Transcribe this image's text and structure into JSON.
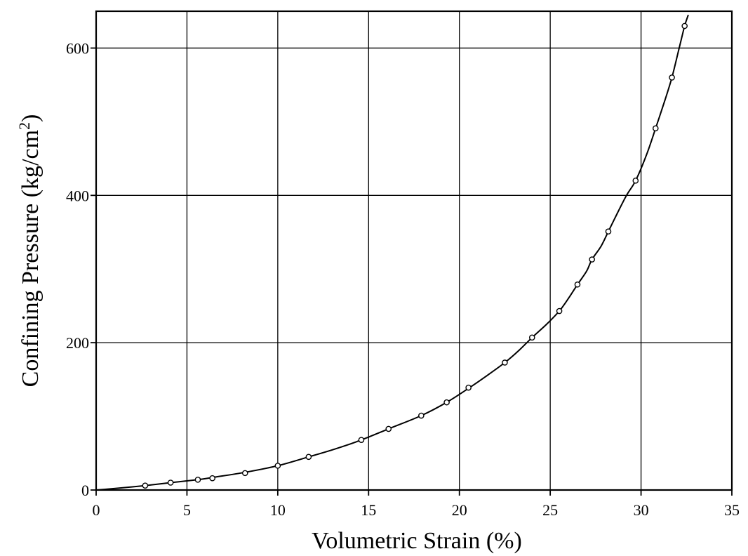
{
  "chart_data": {
    "type": "scatter",
    "title": "",
    "xlabel": "Volumetric Strain (%)",
    "ylabel_main": "Confining Pressure (kg/cm",
    "ylabel_sup": "2",
    "ylabel_close": ")",
    "xlim": [
      0,
      35
    ],
    "ylim": [
      0,
      650
    ],
    "xticks": [
      0,
      5,
      10,
      15,
      20,
      25,
      30,
      35
    ],
    "xtick_labels": [
      "0",
      "5",
      "10",
      "15",
      "20",
      "25",
      "30",
      "35"
    ],
    "yticks": [
      0,
      200,
      400,
      600
    ],
    "ytick_labels": [
      "0",
      "200",
      "400",
      "600"
    ],
    "grid": true,
    "legend": "none",
    "series": [
      {
        "kind": "points",
        "marker": "open-circle",
        "x": [
          2.7,
          4.1,
          5.6,
          6.4,
          8.2,
          10.0,
          11.7,
          14.6,
          16.1,
          17.9,
          19.3,
          20.5,
          22.5,
          24.0,
          25.5,
          26.5,
          27.3,
          28.2,
          29.7,
          30.8,
          31.7,
          32.4
        ],
        "y": [
          6,
          10,
          14,
          16,
          23,
          33,
          45,
          68,
          83,
          101,
          119,
          139,
          173,
          207,
          243,
          279,
          313,
          351,
          420,
          491,
          560,
          630
        ]
      },
      {
        "kind": "fitted-curve",
        "x": [
          0,
          1,
          2.7,
          4.1,
          5.6,
          6.4,
          8.2,
          10.0,
          11.7,
          13.2,
          14.6,
          16.1,
          17.9,
          19.3,
          20.5,
          21.5,
          22.5,
          23.3,
          24.0,
          24.8,
          25.5,
          26.0,
          26.5,
          27.0,
          27.3,
          27.8,
          28.2,
          28.7,
          29.2,
          29.7,
          30.3,
          30.8,
          31.3,
          31.7,
          32.1,
          32.4,
          32.6
        ],
        "y": [
          0,
          2,
          6,
          10,
          14,
          17,
          24,
          33,
          45,
          56,
          68,
          83,
          101,
          119,
          138,
          155,
          173,
          190,
          207,
          225,
          243,
          260,
          279,
          297,
          313,
          331,
          351,
          376,
          400,
          420,
          455,
          491,
          528,
          560,
          600,
          630,
          645
        ]
      }
    ]
  }
}
